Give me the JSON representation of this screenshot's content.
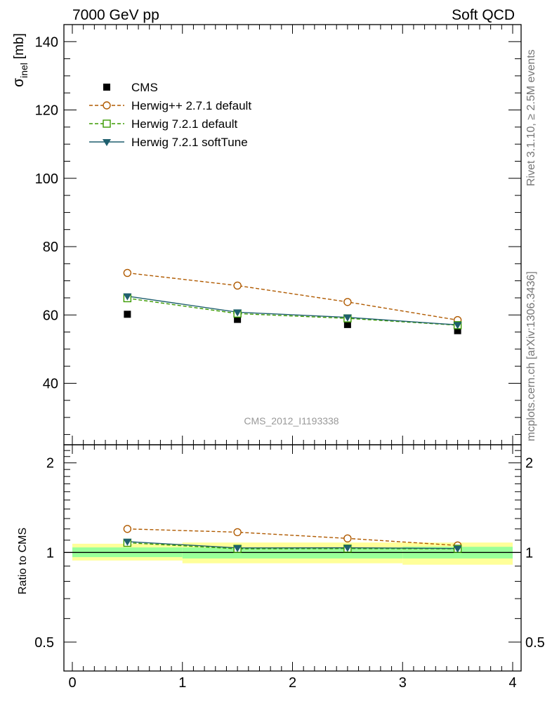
{
  "header": {
    "left_label": "7000 GeV pp",
    "right_label": "Soft QCD"
  },
  "side_text": {
    "rivet": "Rivet 3.1.10, ≥ 2.5M events",
    "mcplots": "mcplots.cern.ch [arXiv:1306.3436]"
  },
  "analysis_id": "CMS_2012_I1193338",
  "colors": {
    "cms": "#000000",
    "herwigpp_271": "#b05a00",
    "herwig_721_default": "#3a9a00",
    "herwig_721_softtune": "#1f5f6e",
    "band_outer": "#ffff99",
    "band_inner": "#99ff99"
  },
  "chart_data": [
    {
      "type": "scatter",
      "panel": "main",
      "ylabel_main": "σ",
      "ylabel_sub": "inel",
      "ylabel_unit": "[mb]",
      "xlabel": "",
      "xlim": [
        0,
        4
      ],
      "ylim": [
        22,
        145
      ],
      "yticks": [
        40,
        60,
        80,
        100,
        120,
        140
      ],
      "yticklabels": [
        "40",
        "60",
        "80",
        "100",
        "120",
        "140"
      ],
      "grid": false,
      "legend_position": "top-left",
      "x": [
        0.5,
        1.5,
        2.5,
        3.5
      ],
      "series": [
        {
          "name": "CMS",
          "key": "cms",
          "marker": "square-filled",
          "line": "none",
          "values": [
            60.2,
            58.7,
            57.2,
            55.4
          ]
        },
        {
          "name": "Herwig++ 2.7.1 default",
          "key": "herwigpp_271",
          "marker": "circle-open",
          "line": "dashed",
          "values": [
            72.3,
            68.6,
            63.8,
            58.5
          ]
        },
        {
          "name": "Herwig 7.2.1 default",
          "key": "herwig_721_default",
          "marker": "square-open",
          "line": "dashed",
          "values": [
            64.9,
            60.4,
            59.0,
            57.0
          ]
        },
        {
          "name": "Herwig 7.2.1 softTune",
          "key": "herwig_721_softtune",
          "marker": "triangle-down-filled",
          "line": "solid",
          "values": [
            65.5,
            60.8,
            59.3,
            57.1
          ]
        }
      ]
    },
    {
      "type": "line",
      "panel": "ratio",
      "ylabel": "Ratio to CMS",
      "xlabel": "",
      "xlim": [
        0,
        4
      ],
      "ylim": [
        0.4,
        2.3
      ],
      "yticks": [
        0.5,
        1,
        2
      ],
      "yticklabels": [
        "0.5",
        "1",
        "2"
      ],
      "xticks": [
        0,
        1,
        2,
        3,
        4
      ],
      "xticklabels": [
        "0",
        "1",
        "2",
        "3",
        "4"
      ],
      "x": [
        0.5,
        1.5,
        2.5,
        3.5
      ],
      "bands": {
        "x_edges": [
          [
            0,
            1
          ],
          [
            1,
            2
          ],
          [
            2,
            3
          ],
          [
            3,
            4
          ]
        ],
        "outer": [
          [
            0.94,
            1.07
          ],
          [
            0.92,
            1.08
          ],
          [
            0.92,
            1.08
          ],
          [
            0.91,
            1.08
          ]
        ],
        "inner": [
          [
            0.965,
            1.04
          ],
          [
            0.955,
            1.04
          ],
          [
            0.955,
            1.04
          ],
          [
            0.955,
            1.045
          ]
        ]
      },
      "series": [
        {
          "name": "Herwig++ 2.7.1 default",
          "key": "herwigpp_271",
          "marker": "circle-open",
          "line": "dashed",
          "values": [
            1.2,
            1.17,
            1.115,
            1.056
          ]
        },
        {
          "name": "Herwig 7.2.1 default",
          "key": "herwig_721_default",
          "marker": "square-open",
          "line": "dashed",
          "values": [
            1.078,
            1.029,
            1.031,
            1.029
          ]
        },
        {
          "name": "Herwig 7.2.1 softTune",
          "key": "herwig_721_softtune",
          "marker": "triangle-down-filled",
          "line": "solid",
          "values": [
            1.088,
            1.036,
            1.037,
            1.031
          ]
        }
      ]
    }
  ]
}
